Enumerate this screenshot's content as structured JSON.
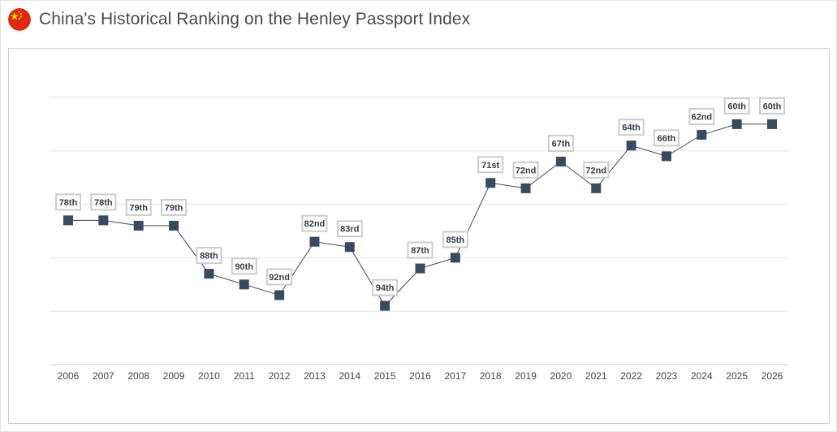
{
  "header": {
    "title": "China's Historical Ranking on the Henley Passport Index",
    "flag_icon": "china-flag-icon"
  },
  "colors": {
    "line": "#3d4a5c",
    "marker": "#3a4a5e",
    "label_border": "#cccccc",
    "gridline": "#e6e6e6",
    "flag_red": "#de2910",
    "flag_yellow": "#ffde00"
  },
  "chart_data": {
    "type": "line",
    "title": "",
    "xlabel": "",
    "ylabel": "",
    "y_reversed": true,
    "ylim": [
      105,
      55
    ],
    "grid": true,
    "legend": "none",
    "categories": [
      "2006",
      "2007",
      "2008",
      "2009",
      "2010",
      "2011",
      "2012",
      "2013",
      "2014",
      "2015",
      "2016",
      "2017",
      "2018",
      "2019",
      "2020",
      "2021",
      "2022",
      "2023",
      "2024",
      "2025",
      "2026"
    ],
    "series": [
      {
        "values": [
          78,
          78,
          79,
          79,
          88,
          90,
          92,
          82,
          83,
          94,
          87,
          85,
          71,
          72,
          67,
          72,
          64,
          66,
          62,
          60,
          60
        ],
        "labels": [
          "78th",
          "78th",
          "79th",
          "79th",
          "88th",
          "90th",
          "92nd",
          "82nd",
          "83rd",
          "94th",
          "87th",
          "85th",
          "71st",
          "72nd",
          "67th",
          "72nd",
          "64th",
          "66th",
          "62nd",
          "60th",
          "60th"
        ]
      }
    ]
  }
}
